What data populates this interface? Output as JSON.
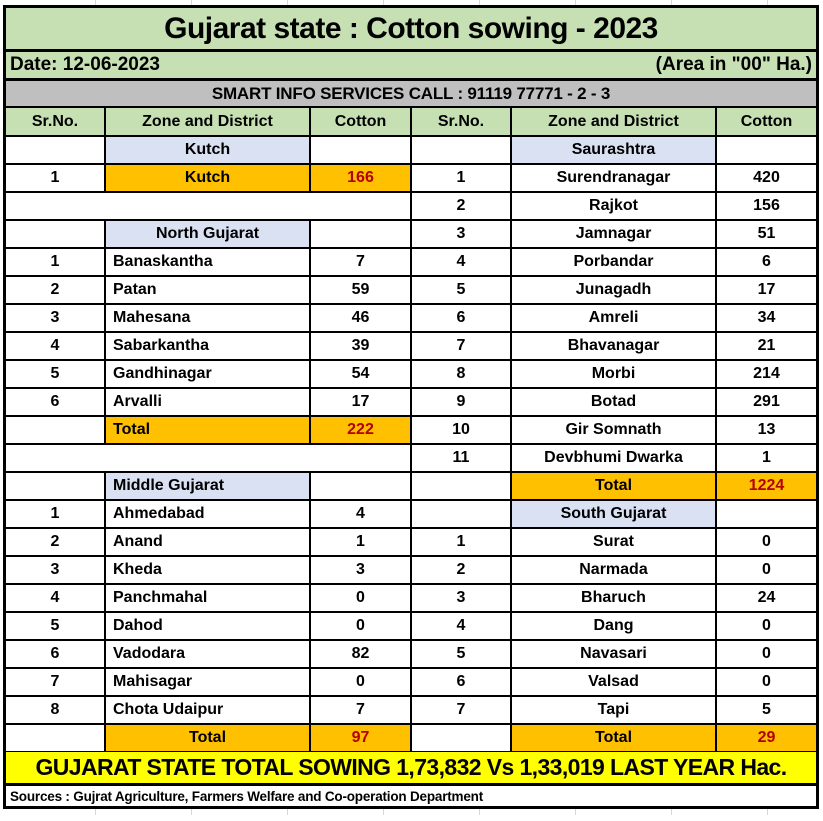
{
  "title": "Gujarat state : Cotton sowing - 2023",
  "date_label": "Date: 12-06-2023",
  "area_label": "(Area in \"00\" Ha.)",
  "info_line": "SMART INFO SERVICES CALL : 91119 77771 - 2 - 3",
  "banner": "GUJARAT STATE TOTAL SOWING 1,73,832 Vs 1,33,019 LAST YEAR Hac.",
  "sources": "Sources : Gujrat Agriculture, Farmers Welfare and Co-operation Department",
  "colors": {
    "header_green": "#c6e0b4",
    "info_gray": "#bfbfbf",
    "zone_blue": "#d9e1f2",
    "total_orange": "#ffc000",
    "banner_yellow": "#ffff00",
    "total_value_red": "#b30000"
  },
  "table": {
    "columns": [
      "Sr.No.",
      "Zone and District",
      "Cotton"
    ],
    "left_rows": [
      {
        "type": "zone",
        "name": "Kutch",
        "align": "center"
      },
      {
        "type": "district",
        "sr": "1",
        "name": "Kutch",
        "value": "166",
        "align": "center",
        "highlight": true
      },
      {
        "type": "empty"
      },
      {
        "type": "zone",
        "name": "North Gujarat",
        "align": "center"
      },
      {
        "type": "district",
        "sr": "1",
        "name": "Banaskantha",
        "value": "7",
        "align": "left"
      },
      {
        "type": "district",
        "sr": "2",
        "name": "Patan",
        "value": "59",
        "align": "left"
      },
      {
        "type": "district",
        "sr": "3",
        "name": "Mahesana",
        "value": "46",
        "align": "left"
      },
      {
        "type": "district",
        "sr": "4",
        "name": "Sabarkantha",
        "value": "39",
        "align": "left"
      },
      {
        "type": "district",
        "sr": "5",
        "name": "Gandhinagar",
        "value": "54",
        "align": "left"
      },
      {
        "type": "district",
        "sr": "6",
        "name": "Arvalli",
        "value": "17",
        "align": "left"
      },
      {
        "type": "total",
        "name": "Total",
        "value": "222",
        "align": "left"
      },
      {
        "type": "empty"
      },
      {
        "type": "zone",
        "name": "Middle Gujarat",
        "align": "left"
      },
      {
        "type": "district",
        "sr": "1",
        "name": "Ahmedabad",
        "value": "4",
        "align": "left"
      },
      {
        "type": "district",
        "sr": "2",
        "name": "Anand",
        "value": "1",
        "align": "left"
      },
      {
        "type": "district",
        "sr": "3",
        "name": "Kheda",
        "value": "3",
        "align": "left"
      },
      {
        "type": "district",
        "sr": "4",
        "name": "Panchmahal",
        "value": "0",
        "align": "left"
      },
      {
        "type": "district",
        "sr": "5",
        "name": "Dahod",
        "value": "0",
        "align": "left"
      },
      {
        "type": "district",
        "sr": "6",
        "name": "Vadodara",
        "value": "82",
        "align": "left"
      },
      {
        "type": "district",
        "sr": "7",
        "name": "Mahisagar",
        "value": "0",
        "align": "left"
      },
      {
        "type": "district",
        "sr": "8",
        "name": "Chota Udaipur",
        "value": "7",
        "align": "left"
      },
      {
        "type": "total",
        "name": "Total",
        "value": "97",
        "align": "center"
      }
    ],
    "right_rows": [
      {
        "type": "zone",
        "name": "Saurashtra",
        "align": "center"
      },
      {
        "type": "district",
        "sr": "1",
        "name": "Surendranagar",
        "value": "420",
        "align": "center"
      },
      {
        "type": "district",
        "sr": "2",
        "name": "Rajkot",
        "value": "156",
        "align": "center"
      },
      {
        "type": "district",
        "sr": "3",
        "name": "Jamnagar",
        "value": "51",
        "align": "center"
      },
      {
        "type": "district",
        "sr": "4",
        "name": "Porbandar",
        "value": "6",
        "align": "center"
      },
      {
        "type": "district",
        "sr": "5",
        "name": "Junagadh",
        "value": "17",
        "align": "center"
      },
      {
        "type": "district",
        "sr": "6",
        "name": "Amreli",
        "value": "34",
        "align": "center"
      },
      {
        "type": "district",
        "sr": "7",
        "name": "Bhavanagar",
        "value": "21",
        "align": "center"
      },
      {
        "type": "district",
        "sr": "8",
        "name": "Morbi",
        "value": "214",
        "align": "center"
      },
      {
        "type": "district",
        "sr": "9",
        "name": "Botad",
        "value": "291",
        "align": "center"
      },
      {
        "type": "district",
        "sr": "10",
        "name": "Gir Somnath",
        "value": "13",
        "align": "center"
      },
      {
        "type": "district",
        "sr": "11",
        "name": "Devbhumi Dwarka",
        "value": "1",
        "align": "center"
      },
      {
        "type": "total",
        "name": "Total",
        "value": "1224",
        "align": "center"
      },
      {
        "type": "zone",
        "name": "South Gujarat",
        "align": "center"
      },
      {
        "type": "district",
        "sr": "1",
        "name": "Surat",
        "value": "0",
        "align": "center"
      },
      {
        "type": "district",
        "sr": "2",
        "name": "Narmada",
        "value": "0",
        "align": "center"
      },
      {
        "type": "district",
        "sr": "3",
        "name": "Bharuch",
        "value": "24",
        "align": "center"
      },
      {
        "type": "district",
        "sr": "4",
        "name": "Dang",
        "value": "0",
        "align": "center"
      },
      {
        "type": "district",
        "sr": "5",
        "name": "Navasari",
        "value": "0",
        "align": "center"
      },
      {
        "type": "district",
        "sr": "6",
        "name": "Valsad",
        "value": "0",
        "align": "center"
      },
      {
        "type": "district",
        "sr": "7",
        "name": "Tapi",
        "value": "5",
        "align": "center"
      },
      {
        "type": "total",
        "name": "Total",
        "value": "29",
        "align": "center"
      }
    ]
  }
}
